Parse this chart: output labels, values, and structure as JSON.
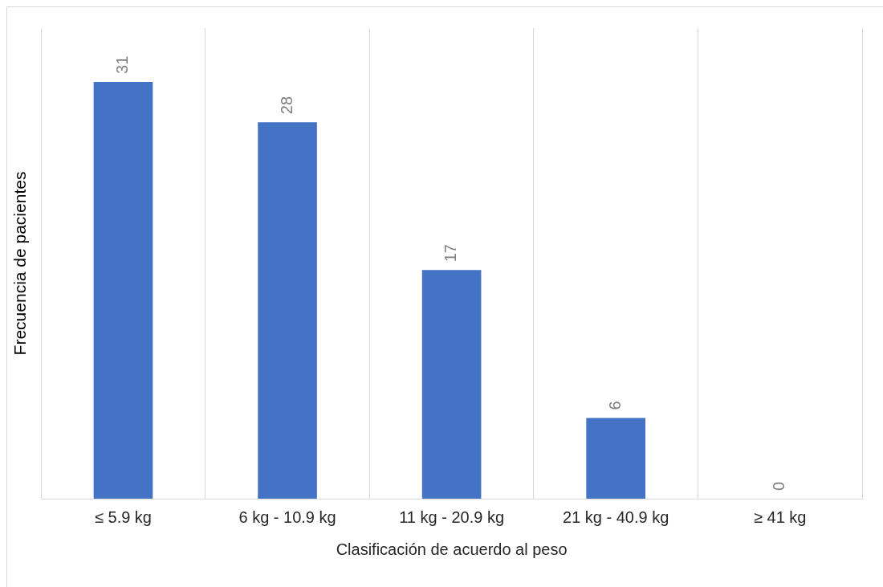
{
  "chart_data": {
    "type": "bar",
    "xlabel": "Clasificación de acuerdo al peso",
    "ylabel": "Frecuencia de pacientes",
    "categories": [
      "≤ 5.9 kg",
      "6 kg - 10.9 kg",
      "11 kg - 20.9 kg",
      "21 kg - 40.9 kg",
      "≥ 41 kg"
    ],
    "values": [
      31,
      28,
      17,
      6,
      0
    ],
    "color": "#4472c4",
    "ylim": [
      0,
      35
    ],
    "data_labels": true,
    "grid": "x",
    "legend": false,
    "tick_labels": "x"
  }
}
